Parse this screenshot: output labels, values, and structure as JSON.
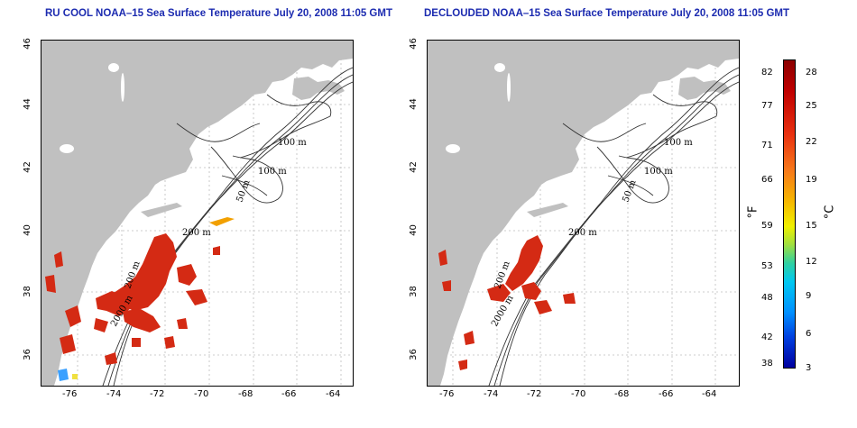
{
  "panels": [
    {
      "title": "RU COOL NOAA–15 Sea Surface Temperature July 20, 2008 11:05 GMT"
    },
    {
      "title": "DECLOUDED NOAA–15 Sea Surface Temperature July 20, 2008 11:05 GMT"
    }
  ],
  "axes": {
    "lon_ticks": [
      "-76",
      "-74",
      "-72",
      "-70",
      "-68",
      "-66",
      "-64"
    ],
    "lat_ticks": [
      "46",
      "44",
      "42",
      "40",
      "38",
      "36"
    ]
  },
  "contour_labels": [
    "100 m",
    "100 m",
    "50 m",
    "200 m",
    "200 m",
    "2000 m"
  ],
  "colorbar": {
    "fahrenheit_ticks": [
      "82",
      "77",
      "71",
      "66",
      "59",
      "53",
      "48",
      "42",
      "38"
    ],
    "celsius_ticks": [
      "28",
      "25",
      "22",
      "19",
      "15",
      "12",
      "9",
      "6",
      "3"
    ],
    "fahrenheit_unit": "°F",
    "celsius_unit": "°C"
  },
  "colors": {
    "title": "#1c2bb0",
    "land": "#c0c0c0",
    "warm": "#d42a14"
  }
}
